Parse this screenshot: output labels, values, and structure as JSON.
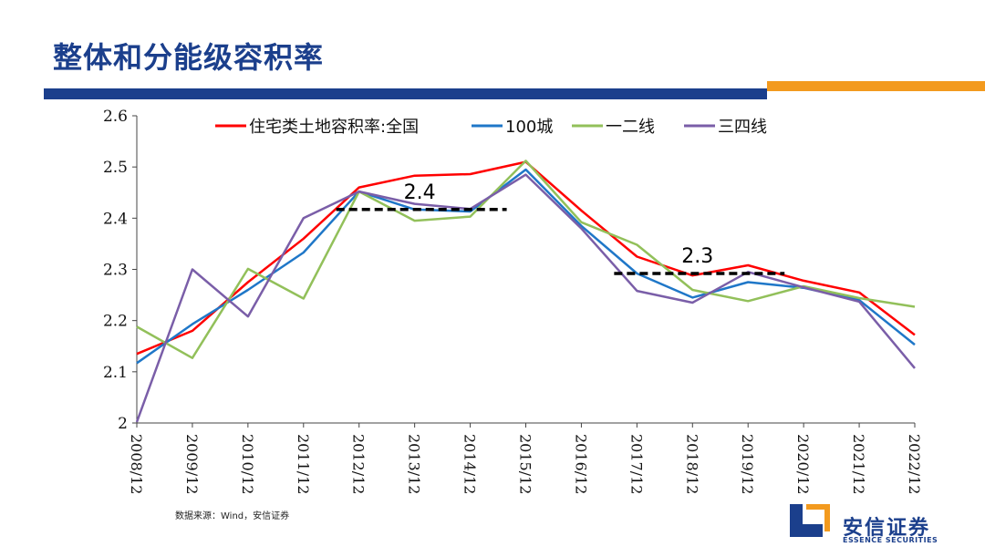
{
  "slide": {
    "title": "整体和分能级容积率",
    "source": "数据来源：Wind，安信证券"
  },
  "brand": {
    "name": "安信证券",
    "sub": "ESSENCE SECURITIES",
    "colors": {
      "navy": "#1b3f8c",
      "orange": "#f39a1e"
    }
  },
  "chart_data": {
    "type": "line",
    "title": "",
    "xlabel": "",
    "ylabel": "",
    "ylim": [
      2,
      2.6
    ],
    "yticks": [
      "2",
      "2.1",
      "2.2",
      "2.3",
      "2.4",
      "2.5",
      "2.6"
    ],
    "categories": [
      "2008/12",
      "2009/12",
      "2010/12",
      "2011/12",
      "2012/12",
      "2013/12",
      "2014/12",
      "2015/12",
      "2016/12",
      "2017/12",
      "2018/12",
      "2019/12",
      "2020/12",
      "2021/12",
      "2022/12"
    ],
    "legend_position": "top",
    "series": [
      {
        "name": "住宅类土地容积率:全国",
        "color": "#ff0000",
        "values": [
          2.135,
          2.18,
          2.275,
          2.36,
          2.46,
          2.483,
          2.486,
          2.51,
          2.415,
          2.325,
          2.288,
          2.308,
          2.278,
          2.255,
          2.172
        ]
      },
      {
        "name": "100城",
        "color": "#1f77c8",
        "values": [
          2.117,
          2.193,
          2.26,
          2.333,
          2.452,
          2.417,
          2.413,
          2.495,
          2.385,
          2.292,
          2.245,
          2.275,
          2.264,
          2.24,
          2.153
        ]
      },
      {
        "name": "一二线",
        "color": "#92c05a",
        "values": [
          2.188,
          2.127,
          2.301,
          2.243,
          2.452,
          2.395,
          2.403,
          2.512,
          2.392,
          2.348,
          2.26,
          2.238,
          2.267,
          2.244,
          2.227
        ]
      },
      {
        "name": "三四线",
        "color": "#7a5ea8",
        "values": [
          2.002,
          2.3,
          2.208,
          2.4,
          2.452,
          2.428,
          2.418,
          2.485,
          2.38,
          2.258,
          2.235,
          2.295,
          2.265,
          2.237,
          2.107
        ]
      }
    ],
    "annotations": [
      {
        "label": "2.4",
        "value": 2.417,
        "from": "2012/12",
        "to": "2014/12"
      },
      {
        "label": "2.3",
        "value": 2.292,
        "from": "2017/12",
        "to": "2019/12"
      }
    ]
  }
}
